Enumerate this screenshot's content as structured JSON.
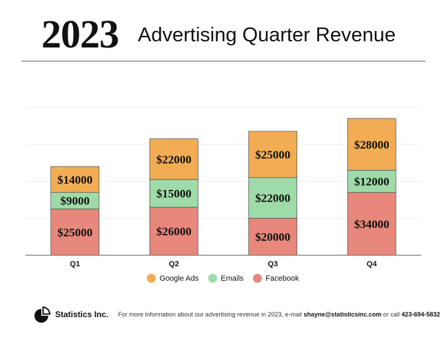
{
  "header": {
    "year": "2023",
    "title": "Advertising Quarter Revenue"
  },
  "chart_data": {
    "type": "bar",
    "stacked": true,
    "categories": [
      "Q1",
      "Q2",
      "Q3",
      "Q4"
    ],
    "series": [
      {
        "name": "Facebook",
        "values": [
          25000,
          26000,
          20000,
          34000
        ],
        "color": "#e8877b",
        "labels": [
          "$25000",
          "$26000",
          "$20000",
          "$34000"
        ]
      },
      {
        "name": "Emails",
        "values": [
          9000,
          15000,
          22000,
          12000
        ],
        "color": "#9fdba8",
        "labels": [
          "$9000",
          "$15000",
          "$22000",
          "$12000"
        ]
      },
      {
        "name": "Google Ads",
        "values": [
          14000,
          22000,
          25000,
          28000
        ],
        "color": "#f2ad54",
        "labels": [
          "$14000",
          "$22000",
          "$25000",
          "$28000"
        ]
      }
    ],
    "ylim": [
      0,
      80000
    ],
    "grid": true,
    "legend_position": "bottom",
    "legend_order": [
      "Google Ads",
      "Emails",
      "Facebook"
    ]
  },
  "footer": {
    "brand": "Statistics Inc.",
    "text_before": "For more information about our advertising revenue in 2023, e-mail ",
    "email": "shayne@statisticsinc.com",
    "text_middle": " or call ",
    "phone": "423-694-5832"
  }
}
